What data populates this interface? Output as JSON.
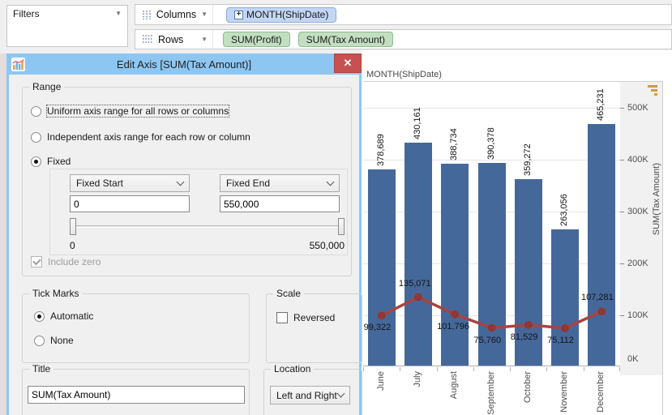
{
  "shelves": {
    "filters": {
      "label": "Filters"
    },
    "columns": {
      "label": "Columns",
      "pills": [
        {
          "label": "MONTH(ShipDate)",
          "expander": "+"
        }
      ]
    },
    "rows": {
      "label": "Rows",
      "pills": [
        {
          "label": "SUM(Profit)"
        },
        {
          "label": "SUM(Tax Amount)"
        }
      ]
    }
  },
  "worksheet": {
    "column_header": "MONTH(ShipDate)"
  },
  "dialog": {
    "title": "Edit Axis [SUM(Tax Amount)]",
    "close_glyph": "✕",
    "range": {
      "legend": "Range",
      "options": [
        {
          "label": "Uniform axis range for all rows or columns",
          "selected": false,
          "focused": true
        },
        {
          "label": "Independent axis range for each row or column",
          "selected": false,
          "focused": false
        },
        {
          "label": "Fixed",
          "selected": true,
          "focused": false
        }
      ],
      "fixed_start": {
        "dropdown": "Fixed Start",
        "value": "0"
      },
      "fixed_end": {
        "dropdown": "Fixed End",
        "value": "550,000"
      },
      "slider_min_label": "0",
      "slider_max_label": "550,000",
      "include_zero": {
        "label": "Include zero",
        "checked": true,
        "disabled": true
      }
    },
    "tick_marks": {
      "legend": "Tick Marks",
      "options": [
        {
          "label": "Automatic",
          "selected": true
        },
        {
          "label": "None",
          "selected": false
        }
      ]
    },
    "scale": {
      "legend": "Scale",
      "reversed": {
        "label": "Reversed",
        "checked": false
      }
    },
    "title_group": {
      "legend": "Title",
      "value": "SUM(Tax Amount)"
    },
    "location_group": {
      "legend": "Location",
      "value": "Left and Right"
    }
  },
  "chart_data": {
    "type": "bar+line combo",
    "categories": [
      "June",
      "July",
      "August",
      "September",
      "October",
      "November",
      "December"
    ],
    "series": [
      {
        "name": "SUM(Profit)",
        "type": "bar",
        "color": "#45689b",
        "values": [
          378689,
          430161,
          388734,
          390378,
          359272,
          263056,
          465231
        ],
        "labels": [
          "378,689",
          "430,161",
          "388,734",
          "390,378",
          "359,272",
          "263,056",
          "465,231"
        ]
      },
      {
        "name": "SUM(Tax Amount)",
        "type": "line",
        "color": "#a8443f",
        "marker_color": "#8f3936",
        "values": [
          99322,
          135071,
          101796,
          75760,
          81529,
          75112,
          107281
        ],
        "labels": [
          "99,322",
          "135,071",
          "101,796",
          "75,760",
          "81,529",
          "75,112",
          "107,281"
        ],
        "label_pos": [
          "below",
          "above",
          "below",
          "below",
          "below",
          "below",
          "above"
        ]
      }
    ],
    "title": "",
    "xlabel": "MONTH(ShipDate)",
    "ylabel_right": "SUM(Tax Amount)",
    "ylim": [
      0,
      550000
    ],
    "y_ticks": [
      0,
      100000,
      200000,
      300000,
      400000,
      500000
    ],
    "y_tick_labels": [
      "0K",
      "100K",
      "200K",
      "300K",
      "400K",
      "500K"
    ],
    "grid": true,
    "legend": "none"
  }
}
